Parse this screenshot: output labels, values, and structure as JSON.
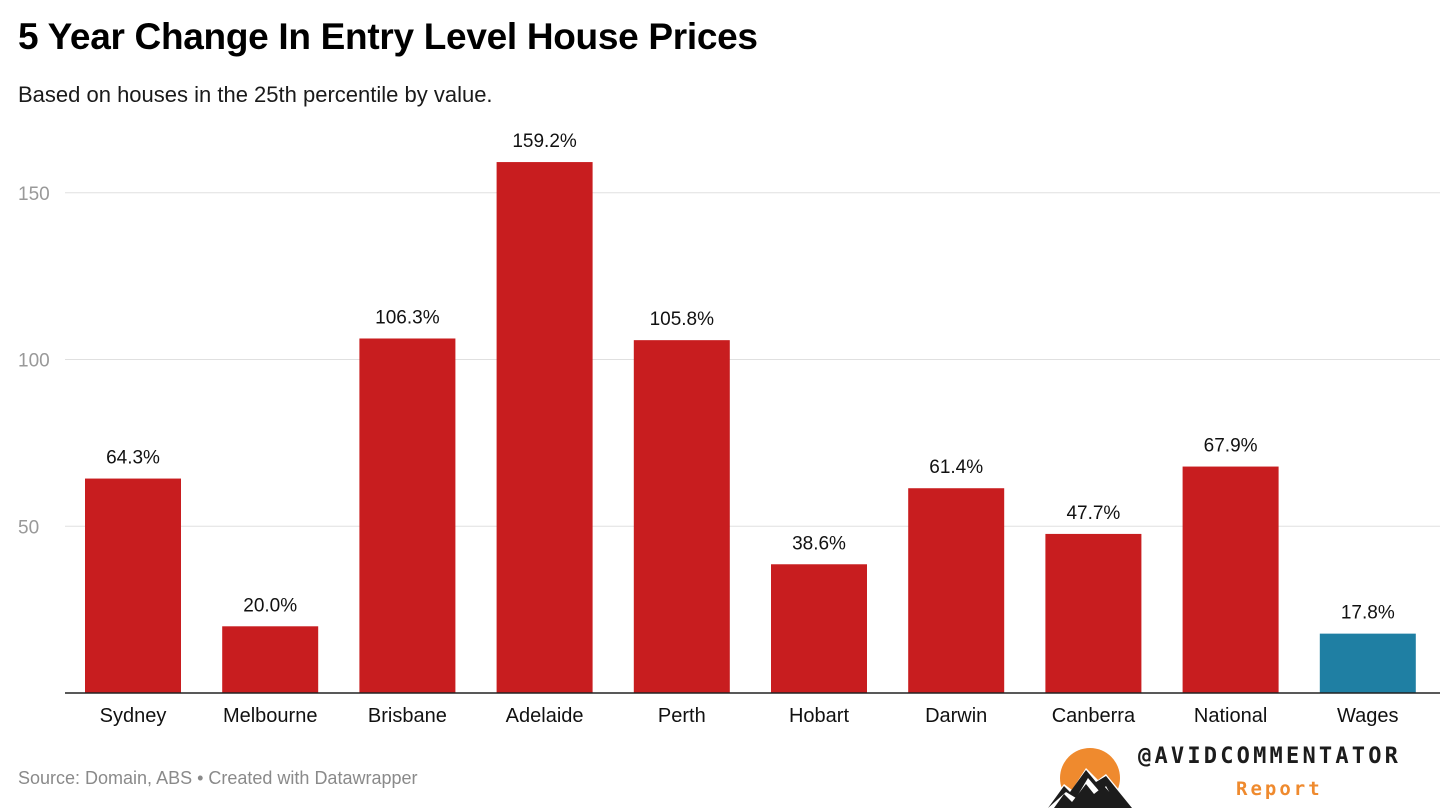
{
  "title": "5 Year Change In Entry Level House Prices",
  "subtitle": "Based on houses in the 25th percentile by value.",
  "source": "Source: Domain, ABS • Created with Datawrapper",
  "brand": {
    "handle": "@AVIDCOMMENTATOR",
    "sub": "Report",
    "icon": "mountain-sun-logo"
  },
  "colors": {
    "primary_bar": "#c81d1f",
    "highlight_bar": "#1f7fa3",
    "gridline": "#e0e0e0",
    "axis": "#222222",
    "tick_label": "#999999",
    "brand_orange": "#ef8a2e"
  },
  "chart_data": {
    "type": "bar",
    "categories": [
      "Sydney",
      "Melbourne",
      "Brisbane",
      "Adelaide",
      "Perth",
      "Hobart",
      "Darwin",
      "Canberra",
      "National",
      "Wages"
    ],
    "values": [
      64.3,
      20.0,
      106.3,
      159.2,
      105.8,
      38.6,
      61.4,
      47.7,
      67.9,
      17.8
    ],
    "value_labels": [
      "64.3%",
      "20.0%",
      "106.3%",
      "159.2%",
      "105.8%",
      "38.6%",
      "61.4%",
      "47.7%",
      "67.9%",
      "17.8%"
    ],
    "highlight": [
      "Wages"
    ],
    "yticks": [
      50,
      100,
      150
    ],
    "ylim": [
      0,
      165
    ],
    "grid": true,
    "title": "5 Year Change In Entry Level House Prices",
    "subtitle": "Based on houses in the 25th percentile by value.",
    "xlabel": "",
    "ylabel": ""
  }
}
